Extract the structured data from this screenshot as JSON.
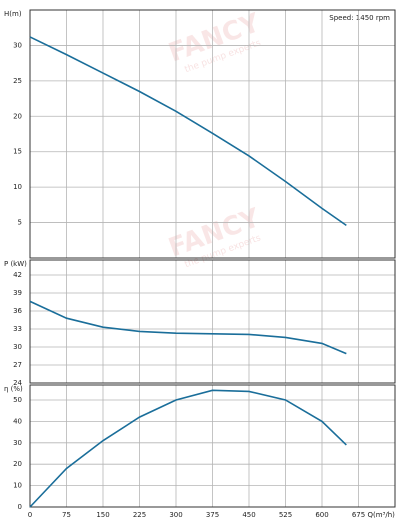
{
  "annotation": "Speed: 1450 rpm",
  "watermark": "FANCY",
  "watermark_sub": "the pump experts",
  "chart_data": [
    {
      "type": "line",
      "ylabel": "H(m)",
      "x": [
        0,
        75,
        150,
        225,
        300,
        375,
        450,
        525,
        600,
        650
      ],
      "series": [
        {
          "name": "H",
          "color": "#1a6e9a",
          "values": [
            31.2,
            28.7,
            26.1,
            23.5,
            20.7,
            17.6,
            14.4,
            10.8,
            7.0,
            4.6
          ]
        }
      ],
      "xlim": [
        0,
        750
      ],
      "xticks": [
        0,
        75,
        150,
        225,
        300,
        375,
        450,
        525,
        600,
        675
      ],
      "ylim": [
        0,
        35
      ],
      "yticks": [
        5,
        10,
        15,
        20,
        25,
        30
      ],
      "grid": true
    },
    {
      "type": "line",
      "ylabel": "P (kW)",
      "x": [
        0,
        75,
        150,
        225,
        300,
        375,
        450,
        525,
        600,
        650
      ],
      "series": [
        {
          "name": "P",
          "color": "#1a6e9a",
          "values": [
            37.6,
            34.8,
            33.3,
            32.6,
            32.3,
            32.2,
            32.1,
            31.6,
            30.6,
            28.9
          ]
        }
      ],
      "xlim": [
        0,
        750
      ],
      "xticks": [
        0,
        75,
        150,
        225,
        300,
        375,
        450,
        525,
        600,
        675
      ],
      "ylim": [
        24,
        44.5
      ],
      "yticks": [
        24,
        27,
        30,
        33,
        36,
        39,
        42
      ],
      "grid": true
    },
    {
      "type": "line",
      "ylabel": "η (%)",
      "xlabel": "Q(m³/h)",
      "x": [
        0,
        75,
        150,
        225,
        300,
        375,
        450,
        525,
        600,
        650
      ],
      "series": [
        {
          "name": "η",
          "color": "#1a6e9a",
          "values": [
            0,
            18,
            31,
            42,
            50,
            54.5,
            54,
            50,
            40,
            29
          ]
        }
      ],
      "xlim": [
        0,
        750
      ],
      "xticks": [
        0,
        75,
        150,
        225,
        300,
        375,
        450,
        525,
        600,
        675
      ],
      "ylim": [
        0,
        57
      ],
      "yticks": [
        0,
        10,
        20,
        30,
        40,
        50
      ],
      "grid": true
    }
  ]
}
